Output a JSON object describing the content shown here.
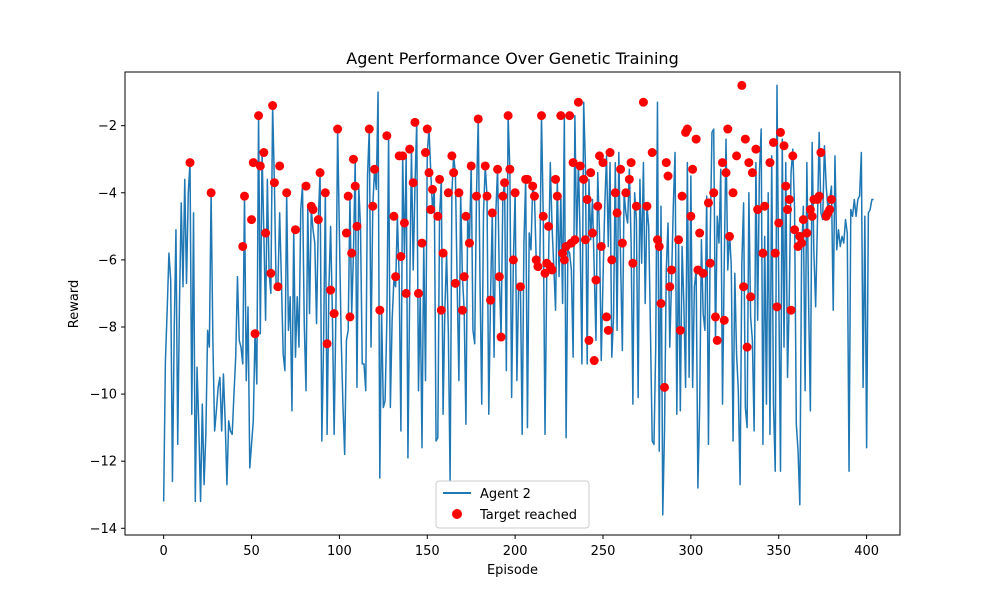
{
  "chart_data": {
    "type": "line",
    "title": "Agent Performance Over Genetic Training",
    "xlabel": "Episode",
    "ylabel": "Reward",
    "xlim": [
      -22,
      419
    ],
    "ylim": [
      -14.2,
      -0.4
    ],
    "xticks": [
      0,
      50,
      100,
      150,
      200,
      250,
      300,
      350,
      400
    ],
    "yticks": [
      -14,
      -12,
      -10,
      -8,
      -6,
      -4,
      -2
    ],
    "grid": false,
    "legend_position": "bottom-center",
    "colors": {
      "line": "#1f77b4",
      "marker": "#ff0000"
    },
    "series": [
      {
        "name": "Agent 2",
        "type": "line",
        "y": [
          -13.2,
          -9,
          -7.5,
          -5.8,
          -6.6,
          -12.6,
          -8.1,
          -5.1,
          -11.5,
          -7.3,
          -4.3,
          -6.8,
          -3.6,
          -6.7,
          -4,
          -3.1,
          -10.6,
          -4.6,
          -13.2,
          -9.2,
          -11,
          -13.2,
          -10.3,
          -12.7,
          -11.2,
          -8.1,
          -8.6,
          -4,
          -8.4,
          -11.1,
          -10.5,
          -9.8,
          -9.5,
          -11.1,
          -9.4,
          -10.8,
          -12.7,
          -10.8,
          -11.1,
          -11.2,
          -10,
          -8.9,
          -6.5,
          -8.4,
          -8.6,
          -9.1,
          -4.1,
          -9.6,
          -7.4,
          -12.2,
          -11.5,
          -10.8,
          -8.1,
          -9.7,
          -1.7,
          -8.2,
          -2.8,
          -5.2,
          -7.8,
          -3.6,
          -6.4,
          -7,
          -1.4,
          -3.7,
          -6.8,
          -6.8,
          -4.6,
          -6.6,
          -8.8,
          -9.3,
          -4,
          -8.1,
          -7.1,
          -10.5,
          -5.1,
          -8.9,
          -7.1,
          -8.6,
          -4.5,
          -3.8,
          -7.9,
          -9.9,
          -4.4,
          -7.6,
          -4.5,
          -5.1,
          -5.5,
          -7.9,
          -4.8,
          -3.4,
          -11.4,
          -8.5,
          -4,
          -11.2,
          -6.9,
          -5,
          -7.6,
          -11.2,
          -7.6,
          -2.1,
          -5.2,
          -8.3,
          -10.3,
          -11.8,
          -8.4,
          -8.1,
          -4.1,
          -7.6,
          -5.8,
          -3,
          -9.8,
          -3.8,
          -5,
          -9.1,
          -9.1,
          -9.9,
          -3.5,
          -2.1,
          -8.6,
          -4.4,
          -3.3,
          -3.9,
          -1,
          -12.5,
          -7.5,
          -10.4,
          -10.2,
          -7.8,
          -2.3,
          -10.4,
          -7.8,
          -6.6,
          -6.8,
          -4.7,
          -6.5,
          -11.1,
          -2.9,
          -5.9,
          -2.9,
          -11.9,
          -7,
          -2.7,
          -6.3,
          -3.8,
          -1.9,
          -9.9,
          -7,
          -11.6,
          -5.5,
          -9.6,
          -2.8,
          -2.1,
          -3.4,
          -4.5,
          -3.9,
          -11.4,
          -11.3,
          -4.7,
          -3.6,
          -10.6,
          -7.5,
          -5.8,
          -8.2,
          -12.6,
          -4,
          -2.9,
          -3.4,
          -6.7,
          -9.6,
          -4,
          -6.5,
          -7.5,
          -10.9,
          -4.7,
          -5.5,
          -3.2,
          -8.1,
          -8.5,
          -4.1,
          -1.8,
          -6.6,
          -10.3,
          -4.6,
          -3.2,
          -4.1,
          -10.6,
          -7.1,
          -4.6,
          -8.9,
          -4.6,
          -3.3,
          -6.5,
          -8.3,
          -4.1,
          -3.7,
          -9.3,
          -1.7,
          -3.3,
          -10.1,
          -6,
          -4,
          -9.6,
          -6.7,
          -6.8,
          -11.2,
          -5.5,
          -3.6,
          -11,
          -5.2,
          -5.7,
          -3.8,
          -4.1,
          -6,
          -6.2,
          -6.3,
          -1.7,
          -4.7,
          -11.2,
          -6.4,
          -6.1,
          -3.1,
          -5,
          -6.2,
          -7.5,
          -3.6,
          -6.5,
          -4.1,
          -7.3,
          -1.7,
          -11.3,
          -5.7,
          -5.8,
          -6.3,
          -8.9,
          -1.7,
          -5.5,
          -3.1,
          -5.4,
          -9.1,
          -1.3,
          -3.2,
          -9.1,
          -3.6,
          -5.4,
          -4.2,
          -6.3,
          -8.4,
          -3.4,
          -5.2,
          -9,
          -6.6,
          -4.4,
          -2.9,
          -5.6,
          -3.1,
          -8.9,
          -7.7,
          -3.1,
          -8.1,
          -2.8,
          -6,
          -8.7,
          -4,
          -4.6,
          -4.9,
          -3.3,
          -5.5,
          -10.3,
          -4,
          -4.8,
          -10.1,
          -3.6,
          -6.1,
          -3.1,
          -7.3,
          -4.4,
          -5,
          -8.1,
          -11.4,
          -11.5,
          -8.6,
          -1.3,
          -11.7,
          -4.4,
          -13.6,
          -11.1,
          -6.3,
          -4.9,
          -8.6,
          -6.6,
          -4.4,
          -2.8,
          -10.6,
          -5.4,
          -10.5,
          -5.6,
          -7.3,
          -9.8,
          -3.1,
          -9.5,
          -3.5,
          -9.8,
          -6.8,
          -6.3,
          -12.8,
          -10.4,
          -5.4,
          -7.6,
          -8.1,
          -4.1,
          -11.5,
          -5.4,
          -2.2,
          -2.1,
          -8.5,
          -4.7,
          -5.5,
          -3.3,
          -10.3,
          -6.1,
          -2.4,
          -6.3,
          -5.2,
          -6.2,
          -11.4,
          -6.4,
          -8.8,
          -9.9,
          -12.7,
          -6.1,
          -4.3,
          -10.4,
          -11,
          -4,
          -7.7,
          -8.4,
          -11.1,
          -3.1,
          -7.8,
          -3.4,
          -2.1,
          -11.5,
          -5.3,
          -10.3,
          -4,
          -11.2,
          -2.9,
          -10.3,
          -12.3,
          -0.8,
          -6.8,
          -12.3,
          -2.4,
          -8.6,
          -3.1,
          -9.5,
          -7.1,
          -3.4,
          -2.7,
          -4.5,
          -10.9,
          -11.7,
          -13.3,
          -5.8,
          -4.4,
          -9.9,
          -3.1,
          -7.3,
          -10.5,
          -2.5,
          -5.8,
          -7.4,
          -4.9,
          -2.2,
          -4.6,
          -4.8,
          -2.6,
          -3.8,
          -4.5,
          -4.2,
          -3.8,
          -7.5,
          -2.9,
          -5.7,
          -5.1,
          -5.6,
          -5.3,
          -5.5,
          -4.8,
          -5.2,
          -12.3,
          -4.5,
          -4.7,
          -4.2,
          -4.7,
          -4.2,
          -4.1,
          -2.8,
          -9.8,
          -4.7,
          -11.6,
          -4.6,
          -4.5,
          -4.2,
          -4.2
        ]
      },
      {
        "name": "Target reached",
        "type": "scatter",
        "points": [
          [
            15,
            -3.1
          ],
          [
            27,
            -4
          ],
          [
            45,
            -5.6
          ],
          [
            46,
            -4.1
          ],
          [
            50,
            -4.8
          ],
          [
            51,
            -3.1
          ],
          [
            52,
            -8.2
          ],
          [
            54,
            -1.7
          ],
          [
            55,
            -3.2
          ],
          [
            57,
            -2.8
          ],
          [
            58,
            -5.2
          ],
          [
            61,
            -6.4
          ],
          [
            62,
            -1.4
          ],
          [
            63,
            -3.7
          ],
          [
            65,
            -6.8
          ],
          [
            66,
            -3.2
          ],
          [
            70,
            -4
          ],
          [
            75,
            -5.1
          ],
          [
            81,
            -3.8
          ],
          [
            84,
            -4.4
          ],
          [
            85,
            -4.5
          ],
          [
            88,
            -4.8
          ],
          [
            89,
            -3.4
          ],
          [
            92,
            -4
          ],
          [
            93,
            -8.5
          ],
          [
            95,
            -6.9
          ],
          [
            97,
            -7.6
          ],
          [
            99,
            -2.1
          ],
          [
            104,
            -5.2
          ],
          [
            105,
            -4.1
          ],
          [
            106,
            -7.7
          ],
          [
            107,
            -5.8
          ],
          [
            108,
            -3
          ],
          [
            109,
            -3.8
          ],
          [
            110,
            -5
          ],
          [
            117,
            -2.1
          ],
          [
            119,
            -4.4
          ],
          [
            120,
            -3.3
          ],
          [
            123,
            -7.5
          ],
          [
            127,
            -2.3
          ],
          [
            131,
            -4.7
          ],
          [
            132,
            -6.5
          ],
          [
            134,
            -2.9
          ],
          [
            135,
            -5.9
          ],
          [
            136,
            -2.9
          ],
          [
            137,
            -4.9
          ],
          [
            138,
            -7
          ],
          [
            140,
            -2.7
          ],
          [
            142,
            -3.7
          ],
          [
            143,
            -1.9
          ],
          [
            145,
            -7
          ],
          [
            147,
            -5.5
          ],
          [
            149,
            -2.8
          ],
          [
            150,
            -2.1
          ],
          [
            151,
            -3.4
          ],
          [
            152,
            -4.5
          ],
          [
            153,
            -3.9
          ],
          [
            156,
            -4.7
          ],
          [
            157,
            -3.6
          ],
          [
            158,
            -7.5
          ],
          [
            159,
            -5.8
          ],
          [
            162,
            -4
          ],
          [
            164,
            -2.9
          ],
          [
            165,
            -3.4
          ],
          [
            166,
            -6.7
          ],
          [
            168,
            -4
          ],
          [
            170,
            -7.5
          ],
          [
            171,
            -6.5
          ],
          [
            172,
            -4.7
          ],
          [
            174,
            -5.5
          ],
          [
            175,
            -3.2
          ],
          [
            178,
            -4.1
          ],
          [
            179,
            -1.8
          ],
          [
            183,
            -3.2
          ],
          [
            184,
            -4.1
          ],
          [
            186,
            -7.2
          ],
          [
            187,
            -4.6
          ],
          [
            190,
            -3.3
          ],
          [
            191,
            -6.5
          ],
          [
            192,
            -8.3
          ],
          [
            193,
            -4.1
          ],
          [
            194,
            -3.7
          ],
          [
            196,
            -1.7
          ],
          [
            197,
            -3.3
          ],
          [
            199,
            -6
          ],
          [
            200,
            -4
          ],
          [
            203,
            -6.8
          ],
          [
            206,
            -3.6
          ],
          [
            207,
            -3.6
          ],
          [
            210,
            -3.8
          ],
          [
            211,
            -4.1
          ],
          [
            212,
            -6
          ],
          [
            213,
            -6.2
          ],
          [
            215,
            -1.7
          ],
          [
            216,
            -4.7
          ],
          [
            217,
            -6.4
          ],
          [
            218,
            -6.1
          ],
          [
            219,
            -5
          ],
          [
            220,
            -6.2
          ],
          [
            221,
            -6.3
          ],
          [
            223,
            -3.6
          ],
          [
            224,
            -4.1
          ],
          [
            226,
            -1.7
          ],
          [
            227,
            -5.8
          ],
          [
            228,
            -6
          ],
          [
            229,
            -5.6
          ],
          [
            231,
            -1.7
          ],
          [
            232,
            -5.5
          ],
          [
            233,
            -3.1
          ],
          [
            234,
            -5.4
          ],
          [
            236,
            -1.3
          ],
          [
            237,
            -3.2
          ],
          [
            239,
            -3.6
          ],
          [
            240,
            -5.4
          ],
          [
            241,
            -4.2
          ],
          [
            242,
            -8.4
          ],
          [
            243,
            -3.4
          ],
          [
            244,
            -5.2
          ],
          [
            245,
            -9
          ],
          [
            246,
            -6.6
          ],
          [
            247,
            -4.4
          ],
          [
            248,
            -2.9
          ],
          [
            249,
            -5.6
          ],
          [
            250,
            -3.1
          ],
          [
            252,
            -7.7
          ],
          [
            253,
            -8.1
          ],
          [
            254,
            -2.8
          ],
          [
            255,
            -6
          ],
          [
            257,
            -4
          ],
          [
            258,
            -4.6
          ],
          [
            260,
            -3.3
          ],
          [
            261,
            -5.5
          ],
          [
            263,
            -4
          ],
          [
            265,
            -3.6
          ],
          [
            266,
            -3.1
          ],
          [
            267,
            -6.1
          ],
          [
            269,
            -4.4
          ],
          [
            273,
            -1.3
          ],
          [
            275,
            -4.4
          ],
          [
            278,
            -2.8
          ],
          [
            281,
            -5.4
          ],
          [
            282,
            -5.6
          ],
          [
            283,
            -7.3
          ],
          [
            285,
            -9.8
          ],
          [
            286,
            -3.1
          ],
          [
            287,
            -3.5
          ],
          [
            288,
            -6.8
          ],
          [
            289,
            -6.3
          ],
          [
            293,
            -5.4
          ],
          [
            294,
            -8.1
          ],
          [
            295,
            -4.1
          ],
          [
            297,
            -2.2
          ],
          [
            298,
            -2.1
          ],
          [
            300,
            -4.7
          ],
          [
            301,
            -3.3
          ],
          [
            303,
            -2.4
          ],
          [
            304,
            -6.3
          ],
          [
            305,
            -5.2
          ],
          [
            307,
            -6.4
          ],
          [
            310,
            -4.3
          ],
          [
            311,
            -6.1
          ],
          [
            313,
            -4
          ],
          [
            314,
            -7.7
          ],
          [
            315,
            -8.4
          ],
          [
            318,
            -3.1
          ],
          [
            319,
            -7.8
          ],
          [
            320,
            -3.4
          ],
          [
            321,
            -2.1
          ],
          [
            322,
            -5.3
          ],
          [
            324,
            -4
          ],
          [
            326,
            -2.9
          ],
          [
            329,
            -0.8
          ],
          [
            330,
            -6.8
          ],
          [
            331,
            -2.4
          ],
          [
            332,
            -8.6
          ],
          [
            333,
            -3.1
          ],
          [
            334,
            -7.1
          ],
          [
            335,
            -3.4
          ],
          [
            337,
            -2.7
          ],
          [
            338,
            -4.5
          ],
          [
            341,
            -5.8
          ],
          [
            342,
            -4.4
          ],
          [
            345,
            -3.1
          ],
          [
            347,
            -2.5
          ],
          [
            348,
            -5.8
          ],
          [
            349,
            -7.4
          ],
          [
            350,
            -4.9
          ],
          [
            351,
            -2.2
          ],
          [
            353,
            -2.6
          ],
          [
            354,
            -3.8
          ],
          [
            355,
            -4.5
          ],
          [
            356,
            -4.2
          ],
          [
            357,
            -7.5
          ],
          [
            358,
            -2.9
          ],
          [
            359,
            -5.1
          ],
          [
            361,
            -5.6
          ],
          [
            362,
            -5.3
          ],
          [
            363,
            -5.5
          ],
          [
            364,
            -4.8
          ],
          [
            366,
            -5.2
          ],
          [
            368,
            -4.5
          ],
          [
            369,
            -4.7
          ],
          [
            370,
            -4.2
          ],
          [
            372,
            -4.2
          ],
          [
            373,
            -4.1
          ],
          [
            374,
            -2.8
          ],
          [
            377,
            -4.7
          ],
          [
            378,
            -4.6
          ],
          [
            379,
            -4.5
          ],
          [
            380,
            -4.2
          ]
        ]
      }
    ]
  }
}
